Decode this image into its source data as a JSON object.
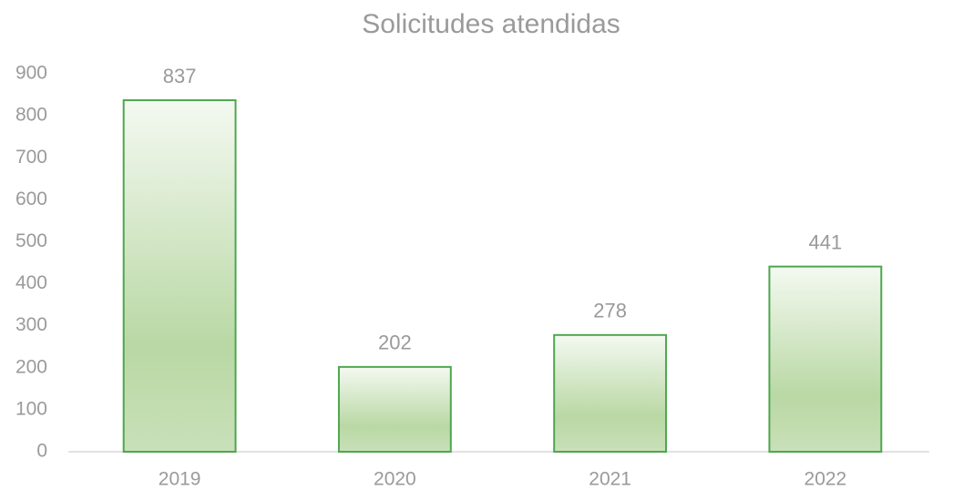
{
  "chart_data": {
    "type": "bar",
    "title": "Solicitudes atendidas",
    "categories": [
      "2019",
      "2020",
      "2021",
      "2022"
    ],
    "values": [
      837,
      202,
      278,
      441
    ],
    "color": "#4ea64f",
    "ylim": [
      0,
      900
    ],
    "yticks": [
      0,
      100,
      200,
      300,
      400,
      500,
      600,
      700,
      800,
      900
    ],
    "grid": false,
    "data_labels": true
  }
}
